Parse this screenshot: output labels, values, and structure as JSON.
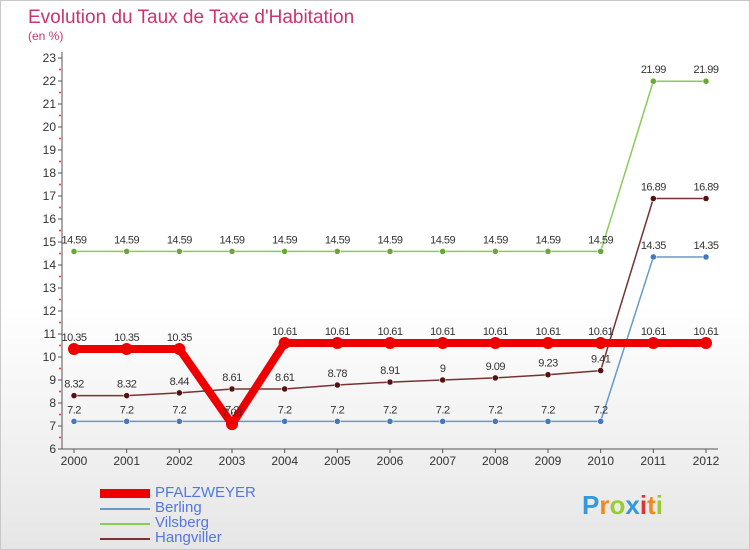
{
  "title": "Evolution du Taux de Taxe d'Habitation",
  "subtitle": "(en %)",
  "chart_data": {
    "type": "line",
    "title": "Evolution du Taux de Taxe d'Habitation",
    "ylabel": "(en %)",
    "xlabel": "",
    "ylim": [
      6,
      23
    ],
    "grid": false,
    "categories": [
      "2000",
      "2001",
      "2002",
      "2003",
      "2004",
      "2005",
      "2006",
      "2007",
      "2008",
      "2009",
      "2010",
      "2011",
      "2012"
    ],
    "yticks": [
      6,
      7,
      8,
      9,
      10,
      11,
      12,
      13,
      14,
      15,
      16,
      17,
      18,
      19,
      20,
      21,
      22,
      23
    ],
    "series": [
      {
        "name": "Vilsberg",
        "color": "#88cc55",
        "marker": "#66aa33",
        "values": [
          14.59,
          14.59,
          14.59,
          14.59,
          14.59,
          14.59,
          14.59,
          14.59,
          14.59,
          14.59,
          14.59,
          21.99,
          21.99
        ],
        "labels": [
          "14.59",
          "14.59",
          "14.59",
          "14.59",
          "14.59",
          "14.59",
          "14.59",
          "14.59",
          "14.59",
          "14.59",
          "14.59",
          "21.99",
          "21.99"
        ]
      },
      {
        "name": "Berling",
        "color": "#6699cc",
        "marker": "#4477bb",
        "values": [
          7.2,
          7.2,
          7.2,
          7.2,
          7.2,
          7.2,
          7.2,
          7.2,
          7.2,
          7.2,
          7.2,
          14.35,
          14.35
        ],
        "labels": [
          "7.2",
          "7.2",
          "7.2",
          "7.2",
          "7.2",
          "7.2",
          "7.2",
          "7.2",
          "7.2",
          "7.2",
          "7.2",
          "14.35",
          "14.35"
        ]
      },
      {
        "name": "Hangviller",
        "color": "#773333",
        "marker": "#551111",
        "values": [
          8.32,
          8.32,
          8.44,
          8.61,
          8.61,
          8.78,
          8.91,
          9,
          9.09,
          9.23,
          9.41,
          16.89,
          16.89
        ],
        "labels": [
          "8.32",
          "8.32",
          "8.44",
          "8.61",
          "8.61",
          "8.78",
          "8.91",
          "9",
          "9.09",
          "9.23",
          "9.41",
          "16.89",
          "16.89"
        ]
      },
      {
        "name": "PFALZWEYER",
        "color": "#ee0000",
        "marker": "#ee0000",
        "values": [
          10.35,
          10.35,
          10.35,
          7.08,
          10.61,
          10.61,
          10.61,
          10.61,
          10.61,
          10.61,
          10.61,
          10.61,
          10.61
        ],
        "labels": [
          "10.35",
          "10.35",
          "10.35",
          "7.08",
          "10.61",
          "10.61",
          "10.61",
          "10.61",
          "10.61",
          "10.61",
          "10.61",
          "10.61",
          "10.61"
        ]
      }
    ],
    "legend": [
      "PFALZWEYER",
      "Berling",
      "Vilsberg",
      "Hangviller"
    ],
    "legend_position": "bottom-left"
  },
  "logo": {
    "letters": [
      "P",
      "r",
      "o",
      "x",
      "i",
      "t",
      "i"
    ],
    "colors": [
      "#3399dd",
      "#ee8822",
      "#99cc33",
      "#3399dd",
      "#dd3333",
      "#ee8822",
      "#99cc33"
    ]
  }
}
